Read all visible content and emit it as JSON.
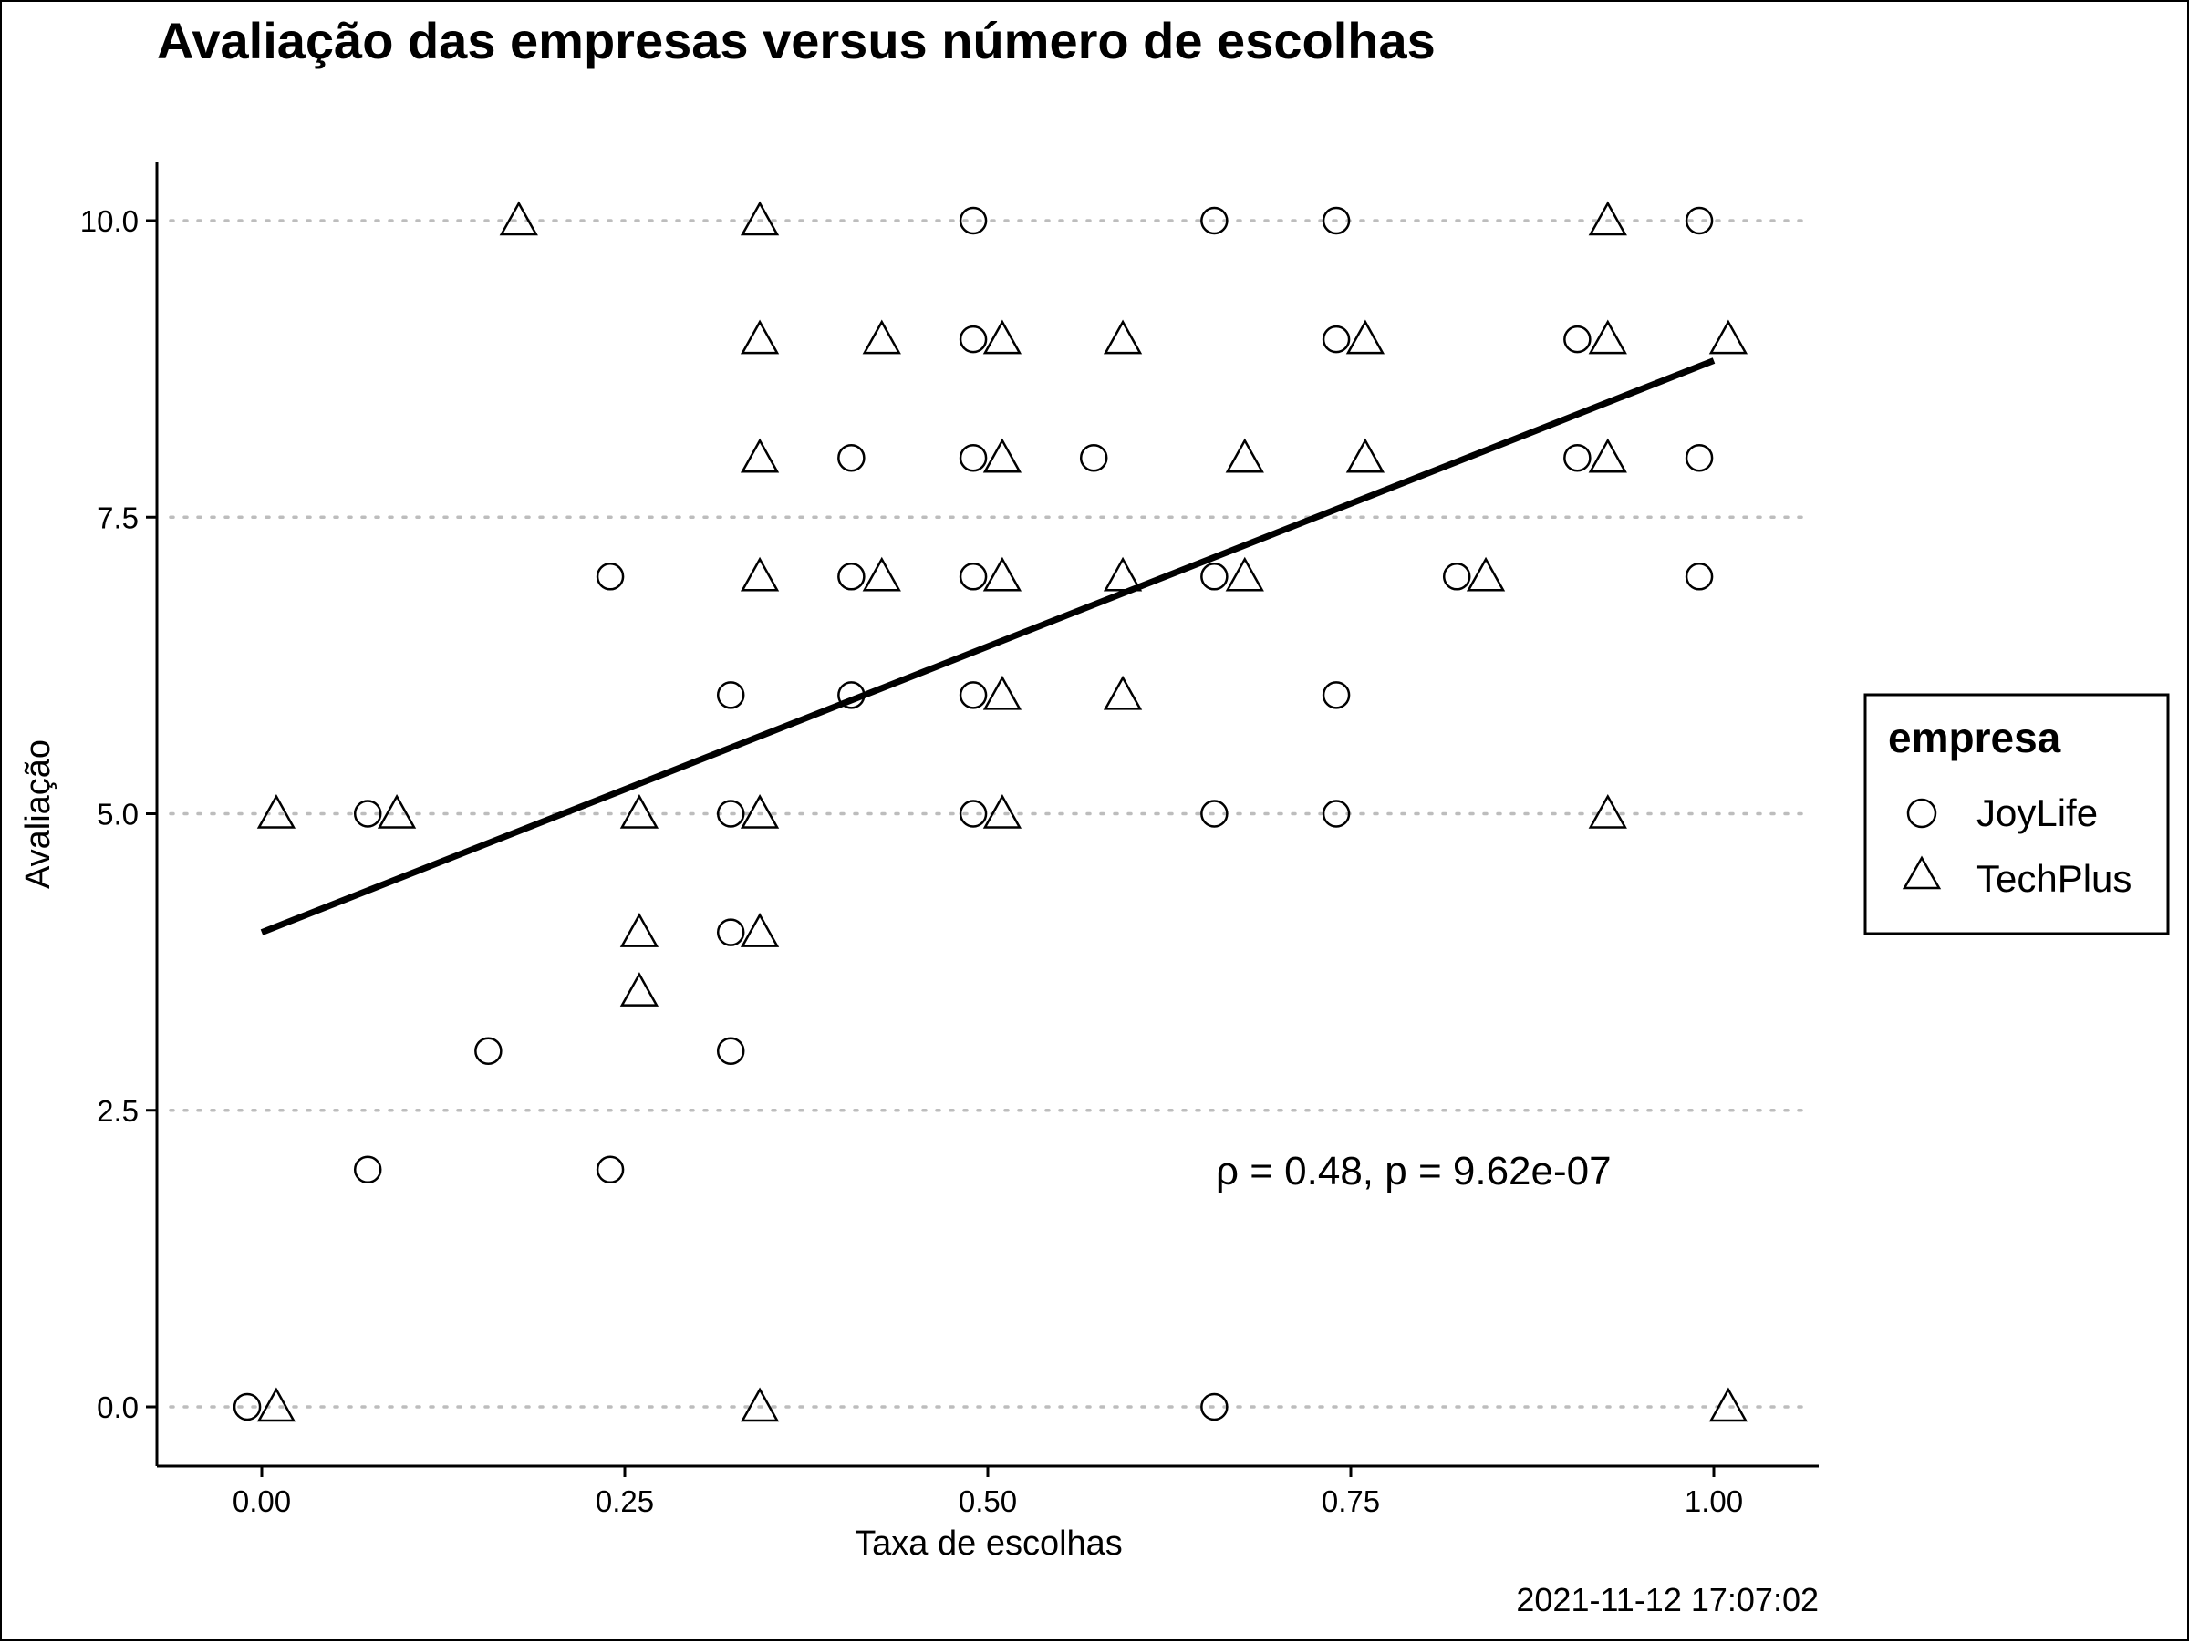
{
  "chart_data": {
    "type": "scatter",
    "title": "Avaliação das empresas versus número de escolhas",
    "xlabel": "Taxa de escolhas",
    "ylabel": "Avaliação",
    "xlim": [
      -0.07,
      1.07
    ],
    "ylim": [
      -0.5,
      10.5
    ],
    "x_ticks": [
      0,
      0.25,
      0.5,
      0.75,
      1.0
    ],
    "x_tick_labels": [
      "0.00",
      "0.25",
      "0.50",
      "0.75",
      "1.00"
    ],
    "y_ticks": [
      0,
      2.5,
      5,
      7.5,
      10
    ],
    "y_tick_labels": [
      "0.0",
      "2.5",
      "5.0",
      "7.5",
      "10.0"
    ],
    "grid": "horizontal dotted at y ticks",
    "legend": {
      "title": "empresa",
      "placement": "right"
    },
    "series": [
      {
        "name": "JoyLife",
        "marker": "circle",
        "points": [
          [
            0.49,
            10
          ],
          [
            0.656,
            10
          ],
          [
            0.74,
            10
          ],
          [
            0.99,
            10
          ],
          [
            0.49,
            9
          ],
          [
            0.74,
            9
          ],
          [
            0.906,
            9
          ],
          [
            0.406,
            8
          ],
          [
            0.49,
            8
          ],
          [
            0.573,
            8
          ],
          [
            0.906,
            8
          ],
          [
            0.99,
            8
          ],
          [
            0.24,
            7
          ],
          [
            0.406,
            7
          ],
          [
            0.49,
            7
          ],
          [
            0.656,
            7
          ],
          [
            0.823,
            7
          ],
          [
            0.99,
            7
          ],
          [
            0.323,
            6
          ],
          [
            0.406,
            6
          ],
          [
            0.49,
            6
          ],
          [
            0.74,
            6
          ],
          [
            0.073,
            5
          ],
          [
            0.323,
            5
          ],
          [
            0.49,
            5
          ],
          [
            0.656,
            5
          ],
          [
            0.74,
            5
          ],
          [
            0.323,
            4
          ],
          [
            0.156,
            3
          ],
          [
            0.323,
            3
          ],
          [
            0.073,
            2
          ],
          [
            0.24,
            2
          ],
          [
            -0.01,
            0
          ],
          [
            0.656,
            0
          ]
        ]
      },
      {
        "name": "TechPlus",
        "marker": "triangle",
        "points": [
          [
            0.177,
            10
          ],
          [
            0.343,
            10
          ],
          [
            0.927,
            10
          ],
          [
            0.343,
            9
          ],
          [
            0.427,
            9
          ],
          [
            0.51,
            9
          ],
          [
            0.593,
            9
          ],
          [
            0.76,
            9
          ],
          [
            0.927,
            9
          ],
          [
            1.01,
            9
          ],
          [
            0.343,
            8
          ],
          [
            0.51,
            8
          ],
          [
            0.677,
            8
          ],
          [
            0.76,
            8
          ],
          [
            0.927,
            8
          ],
          [
            0.343,
            7
          ],
          [
            0.427,
            7
          ],
          [
            0.51,
            7
          ],
          [
            0.593,
            7
          ],
          [
            0.677,
            7
          ],
          [
            0.843,
            7
          ],
          [
            0.51,
            6
          ],
          [
            0.593,
            6
          ],
          [
            0.01,
            5
          ],
          [
            0.093,
            5
          ],
          [
            0.26,
            5
          ],
          [
            0.343,
            5
          ],
          [
            0.51,
            5
          ],
          [
            0.927,
            5
          ],
          [
            0.26,
            4
          ],
          [
            0.343,
            4
          ],
          [
            0.26,
            3.5
          ],
          [
            0.01,
            0
          ],
          [
            0.343,
            0
          ],
          [
            1.01,
            0
          ]
        ]
      }
    ],
    "trend_line": {
      "x": [
        0,
        1.0
      ],
      "y": [
        4.0,
        8.82
      ]
    },
    "annotation": "ρ = 0.48, p = 9.62e-07",
    "caption": "2021-11-12 17:07:02"
  }
}
